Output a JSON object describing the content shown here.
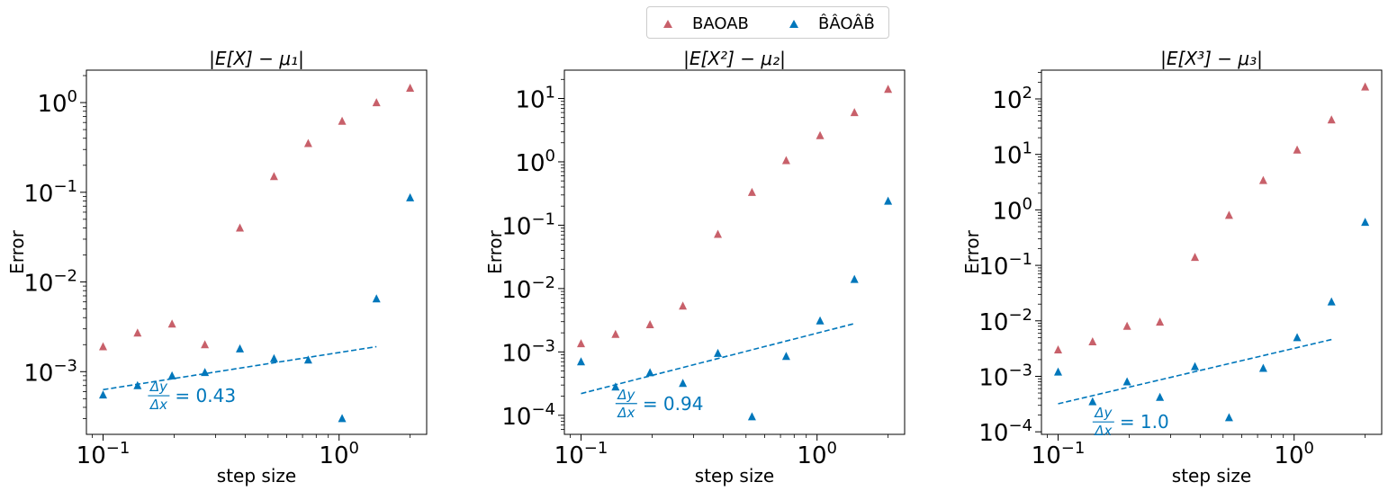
{
  "legend": {
    "items": [
      {
        "label": "BAOAB",
        "color": "#c8606a",
        "marker": "triangle-up"
      },
      {
        "label": "B̂ÂOÂB̂",
        "color": "#0077bb",
        "marker": "triangle-up"
      }
    ],
    "placement": "top-center"
  },
  "chart_data": [
    {
      "type": "scatter",
      "title": "|E[X] − μ₁|",
      "xlabel": "step size",
      "ylabel": "Error",
      "xscale": "log",
      "yscale": "log",
      "xlim": [
        0.085,
        2.35
      ],
      "ylim": [
        0.0002,
        2.3
      ],
      "x_ticks": [
        {
          "value": 0.1,
          "base": "10",
          "exp": "−1"
        },
        {
          "value": 1,
          "base": "10",
          "exp": "0"
        }
      ],
      "y_ticks": [
        {
          "value": 0.001,
          "base": "10",
          "exp": "−3"
        },
        {
          "value": 0.01,
          "base": "10",
          "exp": "−2"
        },
        {
          "value": 0.1,
          "base": "10",
          "exp": "−1"
        },
        {
          "value": 1,
          "base": "10",
          "exp": "0"
        }
      ],
      "series": [
        {
          "name": "BAOAB",
          "color": "#c8606a",
          "x": [
            0.1,
            0.14,
            0.196,
            0.27,
            0.38,
            0.53,
            0.74,
            1.03,
            1.44,
            2.0
          ],
          "y": [
            0.0019,
            0.0027,
            0.0034,
            0.002,
            0.04,
            0.15,
            0.35,
            0.62,
            1.0,
            1.45
          ]
        },
        {
          "name": "B̂ÂOÂB̂",
          "color": "#0077bb",
          "x": [
            0.1,
            0.14,
            0.196,
            0.27,
            0.38,
            0.53,
            0.74,
            1.03,
            1.44,
            2.0
          ],
          "y": [
            0.00055,
            0.0007,
            0.0009,
            0.00098,
            0.0018,
            0.0014,
            0.00135,
            0.0003,
            0.0065,
            0.087
          ]
        }
      ],
      "fit_line": {
        "x": [
          0.1,
          1.44
        ],
        "y": [
          0.00063,
          0.0019
        ],
        "color": "#0077bb"
      },
      "annotation": {
        "numerator": "Δy",
        "denominator": "Δx",
        "text": "= 0.43",
        "x": 0.155,
        "y": 0.00048
      }
    },
    {
      "type": "scatter",
      "title": "|E[X²] − μ₂|",
      "xlabel": "step size",
      "ylabel": "Error",
      "xscale": "log",
      "yscale": "log",
      "xlim": [
        0.085,
        2.35
      ],
      "ylim": [
        5e-05,
        28
      ],
      "x_ticks": [
        {
          "value": 0.1,
          "base": "10",
          "exp": "−1"
        },
        {
          "value": 1,
          "base": "10",
          "exp": "0"
        }
      ],
      "y_ticks": [
        {
          "value": 0.0001,
          "base": "10",
          "exp": "−4"
        },
        {
          "value": 0.001,
          "base": "10",
          "exp": "−3"
        },
        {
          "value": 0.01,
          "base": "10",
          "exp": "−2"
        },
        {
          "value": 0.1,
          "base": "10",
          "exp": "−1"
        },
        {
          "value": 1,
          "base": "10",
          "exp": "0"
        },
        {
          "value": 10,
          "base": "10",
          "exp": "1"
        }
      ],
      "series": [
        {
          "name": "BAOAB",
          "color": "#c8606a",
          "x": [
            0.1,
            0.14,
            0.196,
            0.27,
            0.38,
            0.53,
            0.74,
            1.03,
            1.44,
            2.0
          ],
          "y": [
            0.00135,
            0.0019,
            0.0027,
            0.0053,
            0.072,
            0.33,
            1.05,
            2.6,
            6.0,
            14.0
          ]
        },
        {
          "name": "B̂ÂOÂB̂",
          "color": "#0077bb",
          "x": [
            0.1,
            0.14,
            0.196,
            0.27,
            0.38,
            0.53,
            0.74,
            1.03,
            1.44,
            2.0
          ],
          "y": [
            0.0007,
            0.00028,
            0.00047,
            0.00032,
            0.00095,
            9.5e-05,
            0.00085,
            0.0031,
            0.014,
            0.24
          ]
        }
      ],
      "fit_line": {
        "x": [
          0.1,
          1.44
        ],
        "y": [
          0.00022,
          0.0028
        ],
        "color": "#0077bb"
      },
      "annotation": {
        "numerator": "Δy",
        "denominator": "Δx",
        "text": "= 0.94",
        "x": 0.14,
        "y": 0.00013
      }
    },
    {
      "type": "scatter",
      "title": "|E[X³] − μ₃|",
      "xlabel": "step size",
      "ylabel": "Error",
      "xscale": "log",
      "yscale": "log",
      "xlim": [
        0.085,
        2.35
      ],
      "ylim": [
        9e-05,
        330
      ],
      "x_ticks": [
        {
          "value": 0.1,
          "base": "10",
          "exp": "−1"
        },
        {
          "value": 1,
          "base": "10",
          "exp": "0"
        }
      ],
      "y_ticks": [
        {
          "value": 0.0001,
          "base": "10",
          "exp": "−4"
        },
        {
          "value": 0.001,
          "base": "10",
          "exp": "−3"
        },
        {
          "value": 0.01,
          "base": "10",
          "exp": "−2"
        },
        {
          "value": 0.1,
          "base": "10",
          "exp": "−1"
        },
        {
          "value": 1,
          "base": "10",
          "exp": "0"
        },
        {
          "value": 10,
          "base": "10",
          "exp": "1"
        },
        {
          "value": 100,
          "base": "10",
          "exp": "2"
        }
      ],
      "series": [
        {
          "name": "BAOAB",
          "color": "#c8606a",
          "x": [
            0.1,
            0.14,
            0.196,
            0.27,
            0.38,
            0.53,
            0.74,
            1.03,
            1.44,
            2.0
          ],
          "y": [
            0.003,
            0.0042,
            0.008,
            0.0095,
            0.14,
            0.8,
            3.4,
            12.0,
            42.0,
            165.0
          ]
        },
        {
          "name": "B̂ÂOÂB̂",
          "color": "#0077bb",
          "x": [
            0.1,
            0.14,
            0.196,
            0.27,
            0.38,
            0.53,
            0.74,
            1.03,
            1.44,
            2.0
          ],
          "y": [
            0.0012,
            0.00035,
            0.0008,
            0.00042,
            0.0015,
            0.00018,
            0.0014,
            0.005,
            0.022,
            0.6
          ]
        }
      ],
      "fit_line": {
        "x": [
          0.1,
          1.44
        ],
        "y": [
          0.00032,
          0.0046
        ],
        "color": "#0077bb"
      },
      "annotation": {
        "numerator": "Δy",
        "denominator": "Δx",
        "text": "= 1.0",
        "x": 0.14,
        "y": 0.000125
      }
    }
  ]
}
